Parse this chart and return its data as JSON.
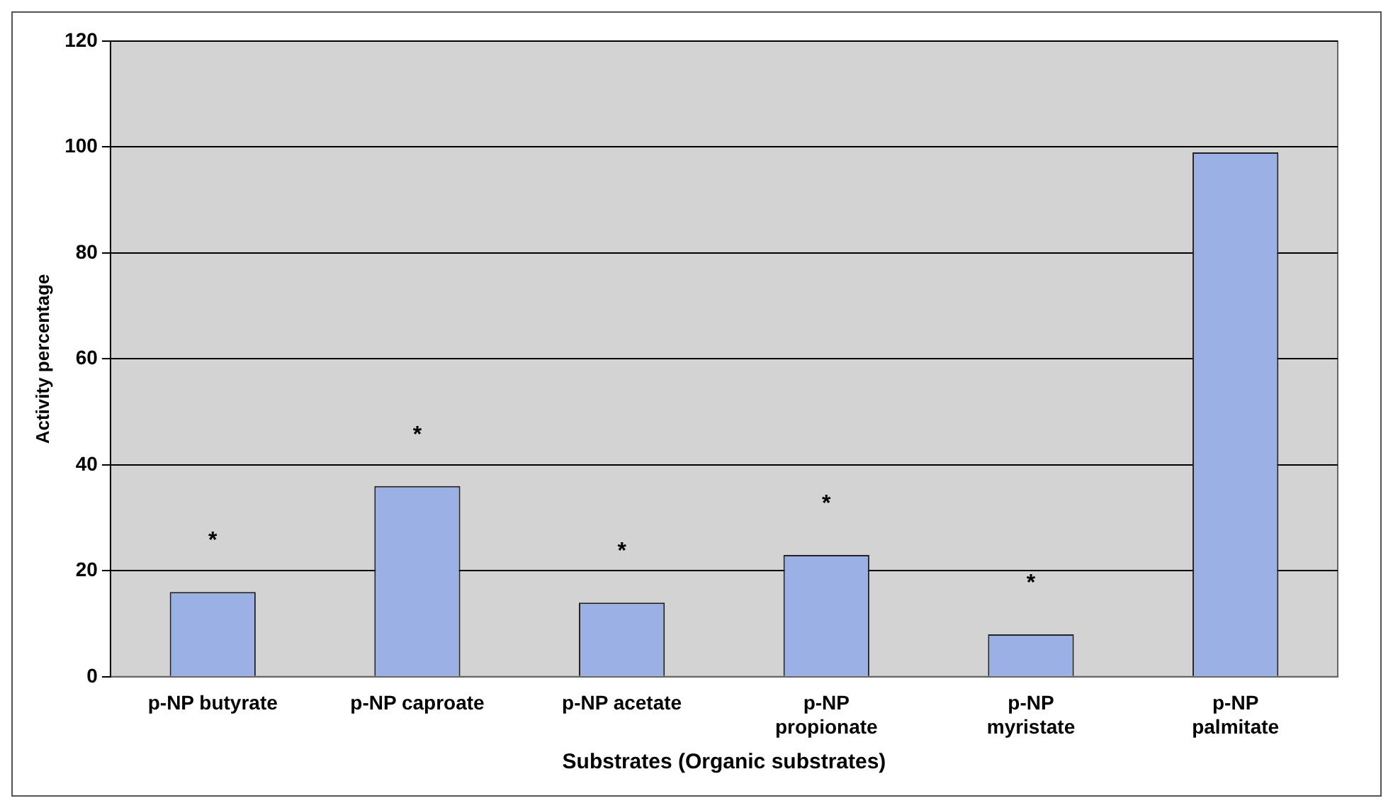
{
  "chart_data": {
    "type": "bar",
    "xlabel": "Substrates (Organic substrates)",
    "ylabel": "Activity percentage",
    "categories": [
      "p-NP butyrate",
      "p-NP caproate",
      "p-NP acetate",
      "p-NP\npropionate",
      "p-NP\nmyristate",
      "p-NP\npalmitate"
    ],
    "values": [
      16,
      36,
      14,
      23,
      8,
      99
    ],
    "color": "#9bb0e4",
    "ylim": [
      0,
      120
    ],
    "yticks": [
      0,
      20,
      40,
      60,
      80,
      100,
      120
    ],
    "grid": "y",
    "annotations": [
      "*",
      "*",
      "*",
      "*",
      "*"
    ]
  }
}
